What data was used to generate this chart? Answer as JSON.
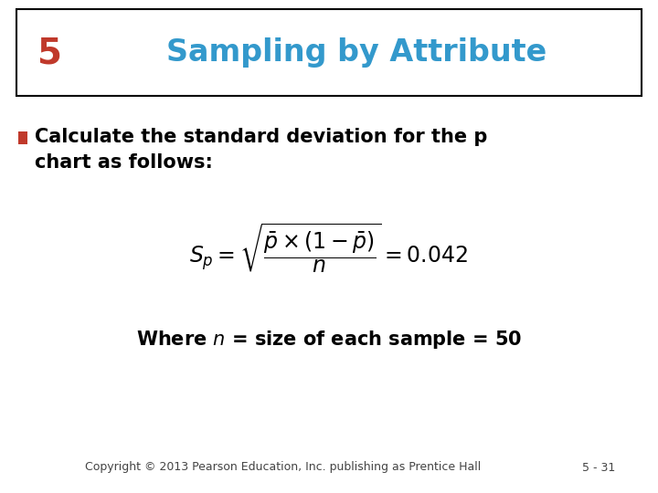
{
  "background_color": "#ffffff",
  "header_box_edgecolor": "#000000",
  "number_text": "5",
  "number_color": "#c0392b",
  "title_text": "Sampling by Attribute",
  "title_color": "#3399cc",
  "bullet_color": "#c0392b",
  "bullet_fontsize": 15,
  "formula_fontsize": 17,
  "where_fontsize": 15,
  "copyright_text": "Copyright © 2013 Pearson Education, Inc. publishing as Prentice Hall",
  "page_text": "5 - 31",
  "footer_fontsize": 9,
  "number_fontsize": 28,
  "title_fontsize": 24
}
